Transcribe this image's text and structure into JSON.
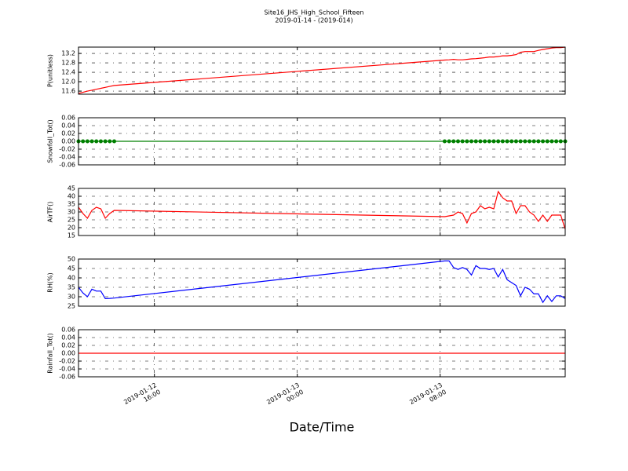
{
  "chart_data": {
    "type": "line",
    "title": "Site16_JHS_High_School_Fifteen",
    "subtitle": "2019-01-14 - (2019-014)",
    "xlabel": "Date/Time",
    "grid": true,
    "xlim": [
      "2019-01-12 11:45",
      "2019-01-13 15:00"
    ],
    "xticks": [
      {
        "value": "2019-01-12 16:00",
        "label": "2019-01-12\n16:00"
      },
      {
        "value": "2019-01-13 00:00",
        "label": "2019-01-13\n00:00"
      },
      {
        "value": "2019-01-13 08:00",
        "label": "2019-01-13\n08:00"
      }
    ],
    "x": [
      "2019-01-12 11:45",
      "2019-01-12 12:00",
      "2019-01-12 12:15",
      "2019-01-12 12:30",
      "2019-01-12 12:45",
      "2019-01-12 13:00",
      "2019-01-12 13:15",
      "2019-01-12 13:30",
      "2019-01-12 13:45",
      "2019-01-13 08:15",
      "2019-01-13 08:30",
      "2019-01-13 08:45",
      "2019-01-13 09:00",
      "2019-01-13 09:15",
      "2019-01-13 09:30",
      "2019-01-13 09:45",
      "2019-01-13 10:00",
      "2019-01-13 10:15",
      "2019-01-13 10:30",
      "2019-01-13 10:45",
      "2019-01-13 11:00",
      "2019-01-13 11:15",
      "2019-01-13 11:30",
      "2019-01-13 11:45",
      "2019-01-13 12:00",
      "2019-01-13 12:15",
      "2019-01-13 12:30",
      "2019-01-13 12:45",
      "2019-01-13 13:00",
      "2019-01-13 13:15",
      "2019-01-13 13:30",
      "2019-01-13 13:45",
      "2019-01-13 14:00",
      "2019-01-13 14:15",
      "2019-01-13 14:30",
      "2019-01-13 14:45",
      "2019-01-13 15:00"
    ],
    "panels": [
      {
        "ylabel": "P(unitless)",
        "color": "#ff0000",
        "markers": false,
        "ylim": [
          11.47,
          13.47
        ],
        "yticks": [
          11.6,
          {
            "value": 12.0,
            "label": "12.0"
          },
          12.4,
          12.8,
          13.2
        ],
        "values": [
          11.5,
          11.55,
          11.6,
          11.64,
          11.68,
          11.72,
          11.76,
          11.8,
          11.84,
          12.92,
          12.93,
          12.95,
          12.93,
          12.93,
          12.95,
          12.97,
          12.98,
          13.0,
          13.02,
          13.05,
          13.05,
          13.07,
          13.1,
          13.1,
          13.12,
          13.15,
          13.25,
          13.28,
          13.28,
          13.28,
          13.33,
          13.37,
          13.4,
          13.43,
          13.45,
          13.45,
          13.47
        ]
      },
      {
        "ylabel": "Snowfall_Tot()",
        "color": "#008000",
        "markers": true,
        "ylim": [
          -0.06,
          0.06
        ],
        "yticks": [
          -0.06,
          -0.04,
          -0.02,
          {
            "value": 0,
            "label": "0.00"
          },
          0.02,
          0.04,
          0.06
        ],
        "values": [
          0,
          0,
          0,
          0,
          0,
          0,
          0,
          0,
          0,
          0,
          0,
          0,
          0,
          0,
          0,
          0,
          0,
          0,
          0,
          0,
          0,
          0,
          0,
          0,
          0,
          0,
          0,
          0,
          0,
          0,
          0,
          0,
          0,
          0,
          0,
          0,
          0
        ]
      },
      {
        "ylabel": "AirTF()",
        "color": "#ff0000",
        "markers": false,
        "ylim": [
          15,
          45
        ],
        "yticks": [
          15,
          20,
          25,
          30,
          35,
          40,
          45
        ],
        "values": [
          33,
          29,
          26,
          31,
          33,
          32,
          26,
          29,
          31,
          27,
          27.5,
          28,
          30,
          29,
          23,
          29,
          30,
          34,
          32,
          33,
          32,
          43,
          39,
          37,
          37,
          29,
          34,
          34,
          30,
          28,
          24,
          28,
          24,
          28,
          28,
          28,
          19
        ]
      },
      {
        "ylabel": "RH(%)",
        "color": "#0000ff",
        "markers": false,
        "ylim": [
          25,
          50
        ],
        "yticks": [
          25,
          30,
          35,
          40,
          45,
          50
        ],
        "values": [
          35,
          32,
          30,
          34,
          33,
          33,
          29,
          29.1,
          29.3,
          49,
          49,
          45.5,
          44.5,
          45.5,
          44.5,
          41.5,
          46.5,
          45,
          45,
          44.5,
          45,
          40.5,
          44.5,
          39,
          37.5,
          36,
          30.5,
          35,
          34,
          31.5,
          31.5,
          27,
          30.5,
          27.5,
          30.5,
          30.5,
          29
        ]
      },
      {
        "ylabel": "Rainfall_Tot()",
        "color": "#ff0000",
        "markers": false,
        "ylim": [
          -0.06,
          0.06
        ],
        "yticks": [
          -0.06,
          -0.04,
          -0.02,
          {
            "value": 0,
            "label": "0.00"
          },
          0.02,
          0.04,
          0.06
        ],
        "values": [
          0,
          0,
          0,
          0,
          0,
          0,
          0,
          0,
          0,
          0,
          0,
          0,
          0,
          0,
          0,
          0,
          0,
          0,
          0,
          0,
          0,
          0,
          0,
          0,
          0,
          0,
          0,
          0,
          0,
          0,
          0,
          0,
          0,
          0,
          0,
          0,
          0
        ]
      }
    ]
  }
}
